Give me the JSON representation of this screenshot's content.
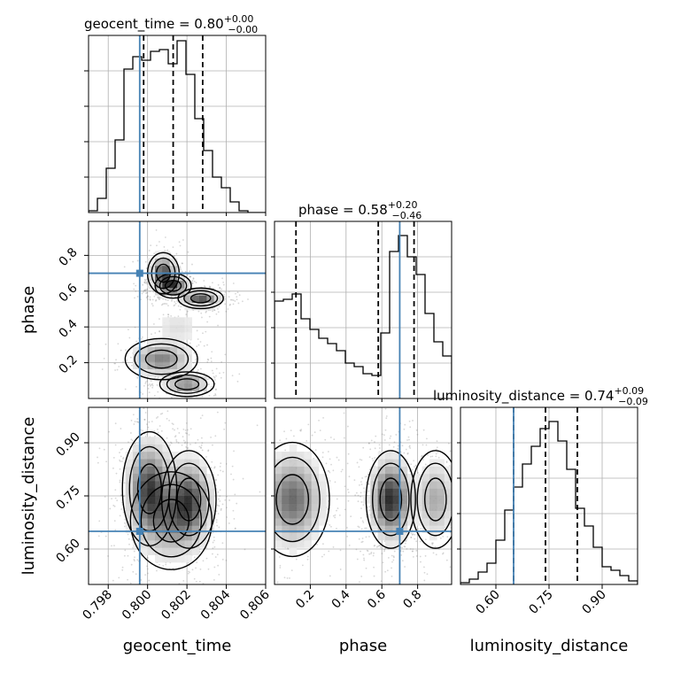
{
  "chart_data": {
    "type": "corner",
    "colors": {
      "truth": "#4682b4",
      "histogram": "#000000",
      "grid": "#b0b0b0",
      "samples": "#7a7a7a"
    },
    "parameters": [
      "geocent_time",
      "phase",
      "luminosity_distance"
    ],
    "truth": {
      "geocent_time": 0.7996,
      "phase": 0.7,
      "luminosity_distance": 0.65
    },
    "titles": [
      {
        "parameter": "geocent_time",
        "text": "geocent_time = 0.80",
        "plus": "+0.00",
        "minus": "−0.00"
      },
      {
        "parameter": "phase",
        "text": "phase = 0.58",
        "plus": "+0.20",
        "minus": "−0.46"
      },
      {
        "parameter": "luminosity_distance",
        "text": "luminosity_distance = 0.74",
        "plus": "+0.09",
        "minus": "−0.09"
      }
    ],
    "axes": {
      "geocent_time": {
        "range": [
          0.797,
          0.806
        ],
        "ticks": [
          "0.798",
          "0.800",
          "0.802",
          "0.804",
          "0.806"
        ],
        "tick_values": [
          0.798,
          0.8,
          0.802,
          0.804,
          0.806
        ]
      },
      "phase": {
        "range": [
          0.0,
          0.99
        ],
        "ticks": [
          "0.2",
          "0.4",
          "0.6",
          "0.8"
        ],
        "tick_values": [
          0.2,
          0.4,
          0.6,
          0.8
        ]
      },
      "luminosity_distance": {
        "range": [
          0.5,
          1.0
        ],
        "ticks": [
          "0.60",
          "0.75",
          "0.90"
        ],
        "tick_values": [
          0.6,
          0.75,
          0.9
        ]
      }
    },
    "histograms": {
      "geocent_time": {
        "edges_range": [
          0.797,
          0.806
        ],
        "counts": [
          0.01,
          0.08,
          0.25,
          0.41,
          0.81,
          0.88,
          0.86,
          0.91,
          0.92,
          0.84,
          0.97,
          0.78,
          0.53,
          0.35,
          0.2,
          0.14,
          0.06,
          0.01,
          0.0,
          0.0
        ],
        "quantiles": [
          0.7998,
          0.8013,
          0.8028
        ]
      },
      "phase": {
        "edges_range": [
          0.0,
          0.99
        ],
        "counts": [
          0.55,
          0.56,
          0.59,
          0.45,
          0.39,
          0.34,
          0.31,
          0.27,
          0.2,
          0.18,
          0.14,
          0.13,
          0.37,
          0.83,
          0.92,
          0.8,
          0.7,
          0.48,
          0.32,
          0.24
        ],
        "quantiles": [
          0.12,
          0.58,
          0.78
        ]
      },
      "luminosity_distance": {
        "edges_range": [
          0.5,
          1.0
        ],
        "counts": [
          0.01,
          0.03,
          0.07,
          0.12,
          0.25,
          0.42,
          0.55,
          0.68,
          0.78,
          0.88,
          0.92,
          0.81,
          0.65,
          0.43,
          0.33,
          0.21,
          0.1,
          0.08,
          0.05,
          0.02
        ],
        "quantiles": [
          0.65,
          0.74,
          0.83
        ]
      }
    },
    "joint_clusters": {
      "geocent_time__phase": [
        {
          "x": 0.8008,
          "y": 0.7,
          "sx": 0.00035,
          "sy": 0.05,
          "w": 0.9
        },
        {
          "x": 0.8013,
          "y": 0.63,
          "sx": 0.0004,
          "sy": 0.03,
          "w": 0.9
        },
        {
          "x": 0.8027,
          "y": 0.56,
          "sx": 0.0005,
          "sy": 0.025,
          "w": 0.8
        },
        {
          "x": 0.8007,
          "y": 0.22,
          "sx": 0.0008,
          "sy": 0.05,
          "w": 0.6
        },
        {
          "x": 0.802,
          "y": 0.08,
          "sx": 0.0006,
          "sy": 0.03,
          "w": 0.6
        },
        {
          "x": 0.8015,
          "y": 0.4,
          "sx": 0.0007,
          "sy": 0.06,
          "w": 0.15
        }
      ],
      "geocent_time__luminosity_distance": [
        {
          "x": 0.8001,
          "y": 0.77,
          "sx": 0.0006,
          "sy": 0.07,
          "w": 0.9
        },
        {
          "x": 0.8021,
          "y": 0.74,
          "sx": 0.0006,
          "sy": 0.06,
          "w": 0.8
        },
        {
          "x": 0.8012,
          "y": 0.68,
          "sx": 0.0009,
          "sy": 0.06,
          "w": 0.5
        }
      ],
      "phase__luminosity_distance": [
        {
          "x": 0.65,
          "y": 0.74,
          "sx": 0.06,
          "sy": 0.06,
          "w": 1.0
        },
        {
          "x": 0.1,
          "y": 0.74,
          "sx": 0.09,
          "sy": 0.07,
          "w": 0.7
        },
        {
          "x": 0.9,
          "y": 0.74,
          "sx": 0.06,
          "sy": 0.06,
          "w": 0.4
        }
      ]
    },
    "contour_levels": 3,
    "grid": true
  }
}
